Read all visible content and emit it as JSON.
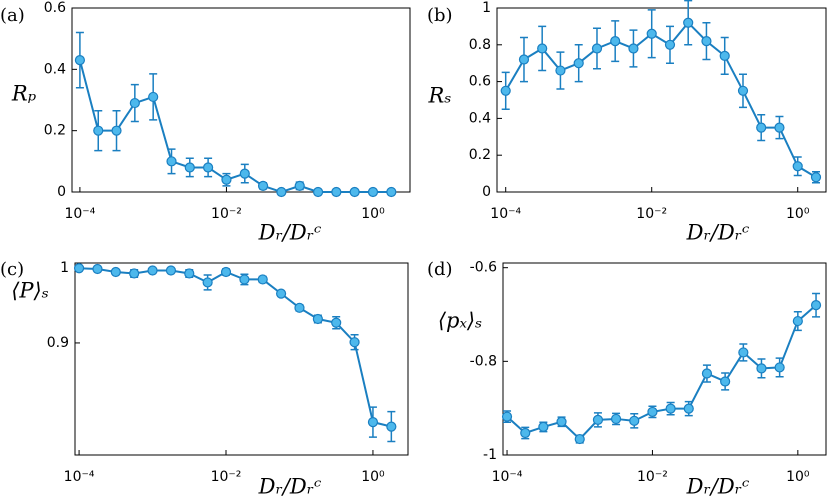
{
  "chart_data": [
    {
      "type": "line",
      "panel_label": "(a)",
      "ylabel": "Rₚ",
      "xlabel": "Dᵣ/Dᵣᶜ",
      "log_x": true,
      "x": [
        0.0001,
        0.000178,
        0.000316,
        0.000562,
        0.001,
        0.00178,
        0.00316,
        0.00562,
        0.01,
        0.0178,
        0.0316,
        0.0562,
        0.1,
        0.178,
        0.316,
        0.562,
        1,
        1.78
      ],
      "values": [
        0.43,
        0.2,
        0.2,
        0.29,
        0.31,
        0.1,
        0.08,
        0.08,
        0.04,
        0.06,
        0.02,
        0,
        0.02,
        0,
        0,
        0,
        0,
        0
      ],
      "errors": [
        0.09,
        0.065,
        0.065,
        0.06,
        0.075,
        0.04,
        0.03,
        0.03,
        0.02,
        0.03,
        0.01,
        0,
        0.012,
        0,
        0,
        0,
        0,
        0
      ],
      "color": "#1a7fc1",
      "marker_color": "#4db8ec",
      "xlim": [
        7.8e-05,
        3.2
      ],
      "xticks": [
        {
          "value": 0.0001,
          "label": "10⁻⁴"
        },
        {
          "value": 0.01,
          "label": "10⁻²"
        },
        {
          "value": 1,
          "label": "10⁰"
        }
      ],
      "ylim": [
        0,
        0.6
      ],
      "yticks": [
        0,
        0.2,
        0.4,
        0.6
      ]
    },
    {
      "type": "line",
      "panel_label": "(b)",
      "ylabel": "Rₛ",
      "xlabel": "Dᵣ/Dᵣᶜ",
      "log_x": true,
      "x": [
        0.0001,
        0.000178,
        0.000316,
        0.000562,
        0.001,
        0.00178,
        0.00316,
        0.00562,
        0.01,
        0.0178,
        0.0316,
        0.0562,
        0.1,
        0.178,
        0.316,
        0.562,
        1,
        1.78
      ],
      "values": [
        0.55,
        0.72,
        0.78,
        0.66,
        0.7,
        0.78,
        0.82,
        0.78,
        0.86,
        0.8,
        0.92,
        0.82,
        0.74,
        0.55,
        0.35,
        0.35,
        0.14,
        0.08
      ],
      "errors": [
        0.1,
        0.12,
        0.12,
        0.1,
        0.1,
        0.11,
        0.11,
        0.1,
        0.13,
        0.1,
        0.12,
        0.1,
        0.1,
        0.09,
        0.07,
        0.06,
        0.05,
        0.03
      ],
      "color": "#1a7fc1",
      "marker_color": "#4db8ec",
      "xlim": [
        7.6e-05,
        2.44
      ],
      "xticks": [
        {
          "value": 0.0001,
          "label": "10⁻⁴"
        },
        {
          "value": 0.01,
          "label": "10⁻²"
        },
        {
          "value": 1,
          "label": "10⁰"
        }
      ],
      "ylim": [
        0,
        1
      ],
      "yticks": [
        0,
        0.2,
        0.4,
        0.6,
        0.8,
        1
      ]
    },
    {
      "type": "line",
      "panel_label": "(c)",
      "ylabel": "⟨P⟩ₛ",
      "xlabel": "Dᵣ/Dᵣᶜ",
      "log_x": true,
      "x": [
        0.0001,
        0.000178,
        0.000316,
        0.000562,
        0.001,
        0.00178,
        0.00316,
        0.00562,
        0.01,
        0.0178,
        0.0316,
        0.0562,
        0.1,
        0.178,
        0.316,
        0.562,
        1,
        1.78
      ],
      "values": [
        1.0,
        0.999,
        0.995,
        0.993,
        0.997,
        0.997,
        0.993,
        0.981,
        0.995,
        0.985,
        0.985,
        0.966,
        0.947,
        0.932,
        0.927,
        0.901,
        0.794,
        0.788
      ],
      "errors": [
        0.002,
        0.002,
        0.003,
        0.005,
        0.003,
        0.003,
        0.005,
        0.01,
        0.004,
        0.007,
        0.004,
        0.003,
        0.004,
        0.005,
        0.008,
        0.01,
        0.02,
        0.02
      ],
      "color": "#1a7fc1",
      "marker_color": "#4db8ec",
      "xlim": [
        8.8e-05,
        3
      ],
      "xticks": [
        {
          "value": 0.0001,
          "label": "10⁻⁴"
        },
        {
          "value": 0.01,
          "label": "10⁻²"
        },
        {
          "value": 1,
          "label": "10⁰"
        }
      ],
      "ylim": [
        0.75,
        1.007
      ],
      "yticks": [
        0.9,
        1
      ]
    },
    {
      "type": "line",
      "panel_label": "(d)",
      "ylabel": "⟨pₓ⟩ₛ",
      "xlabel": "Dᵣ/Dᵣᶜ",
      "log_x": true,
      "x": [
        0.0001,
        0.000178,
        0.000316,
        0.000562,
        0.001,
        0.00178,
        0.00316,
        0.00562,
        0.01,
        0.0178,
        0.0316,
        0.0562,
        0.1,
        0.178,
        0.316,
        0.562,
        1,
        1.78
      ],
      "values": [
        -0.918,
        -0.953,
        -0.94,
        -0.929,
        -0.966,
        -0.925,
        -0.923,
        -0.927,
        -0.908,
        -0.901,
        -0.901,
        -0.826,
        -0.843,
        -0.781,
        -0.815,
        -0.813,
        -0.714,
        -0.68
      ],
      "errors": [
        0.012,
        0.012,
        0.01,
        0.01,
        0.008,
        0.015,
        0.012,
        0.015,
        0.012,
        0.013,
        0.015,
        0.018,
        0.018,
        0.018,
        0.02,
        0.02,
        0.02,
        0.025
      ],
      "color": "#1a7fc1",
      "marker_color": "#4db8ec",
      "xlim": [
        8.8e-05,
        2.44
      ],
      "xticks": [
        {
          "value": 0.0001,
          "label": "10⁻⁴"
        },
        {
          "value": 0.01,
          "label": "10⁻²"
        },
        {
          "value": 1,
          "label": "10⁰"
        }
      ],
      "ylim": [
        -1,
        -0.59
      ],
      "yticks": [
        -1,
        -0.8,
        -0.6
      ]
    }
  ]
}
